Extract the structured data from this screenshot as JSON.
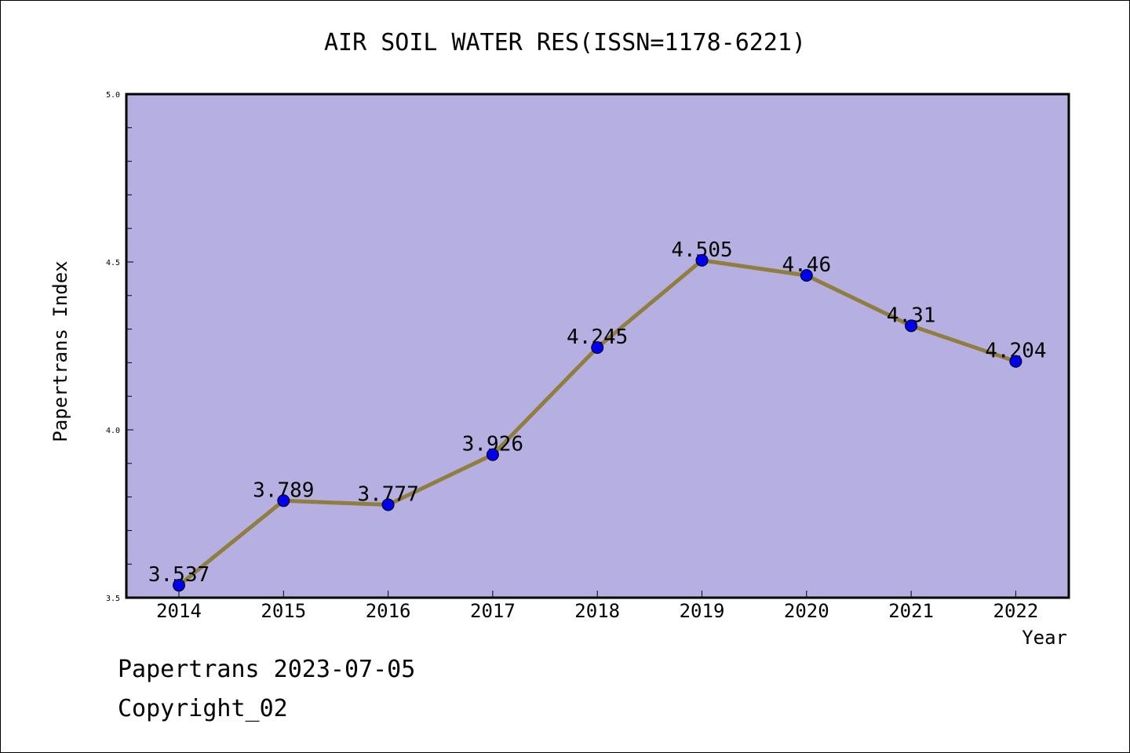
{
  "chart_data": {
    "type": "line",
    "title": "AIR SOIL WATER RES(ISSN=1178-6221)",
    "xlabel": "Year",
    "ylabel": "Papertrans Index",
    "categories": [
      "2014",
      "2015",
      "2016",
      "2017",
      "2018",
      "2019",
      "2020",
      "2021",
      "2022"
    ],
    "series": [
      {
        "values": [
          3.537,
          3.789,
          3.777,
          3.926,
          4.245,
          4.505,
          4.46,
          4.31,
          4.204
        ],
        "labels": [
          "3.537",
          "3.789",
          "3.777",
          "3.926",
          "4.245",
          "4.505",
          "4.46",
          "4.31",
          "4.204"
        ]
      }
    ],
    "ylim": [
      3.5,
      5.0
    ],
    "yticks": [
      "3.5",
      "4.0",
      "4.5",
      "5.0"
    ],
    "grid": false,
    "colors": {
      "plot_background": "#b5afe2",
      "line": "#8f7e3e",
      "marker": "#0000ee"
    }
  },
  "footer": {
    "line1": "Papertrans 2023-07-05",
    "line2": "Copyright_02"
  }
}
